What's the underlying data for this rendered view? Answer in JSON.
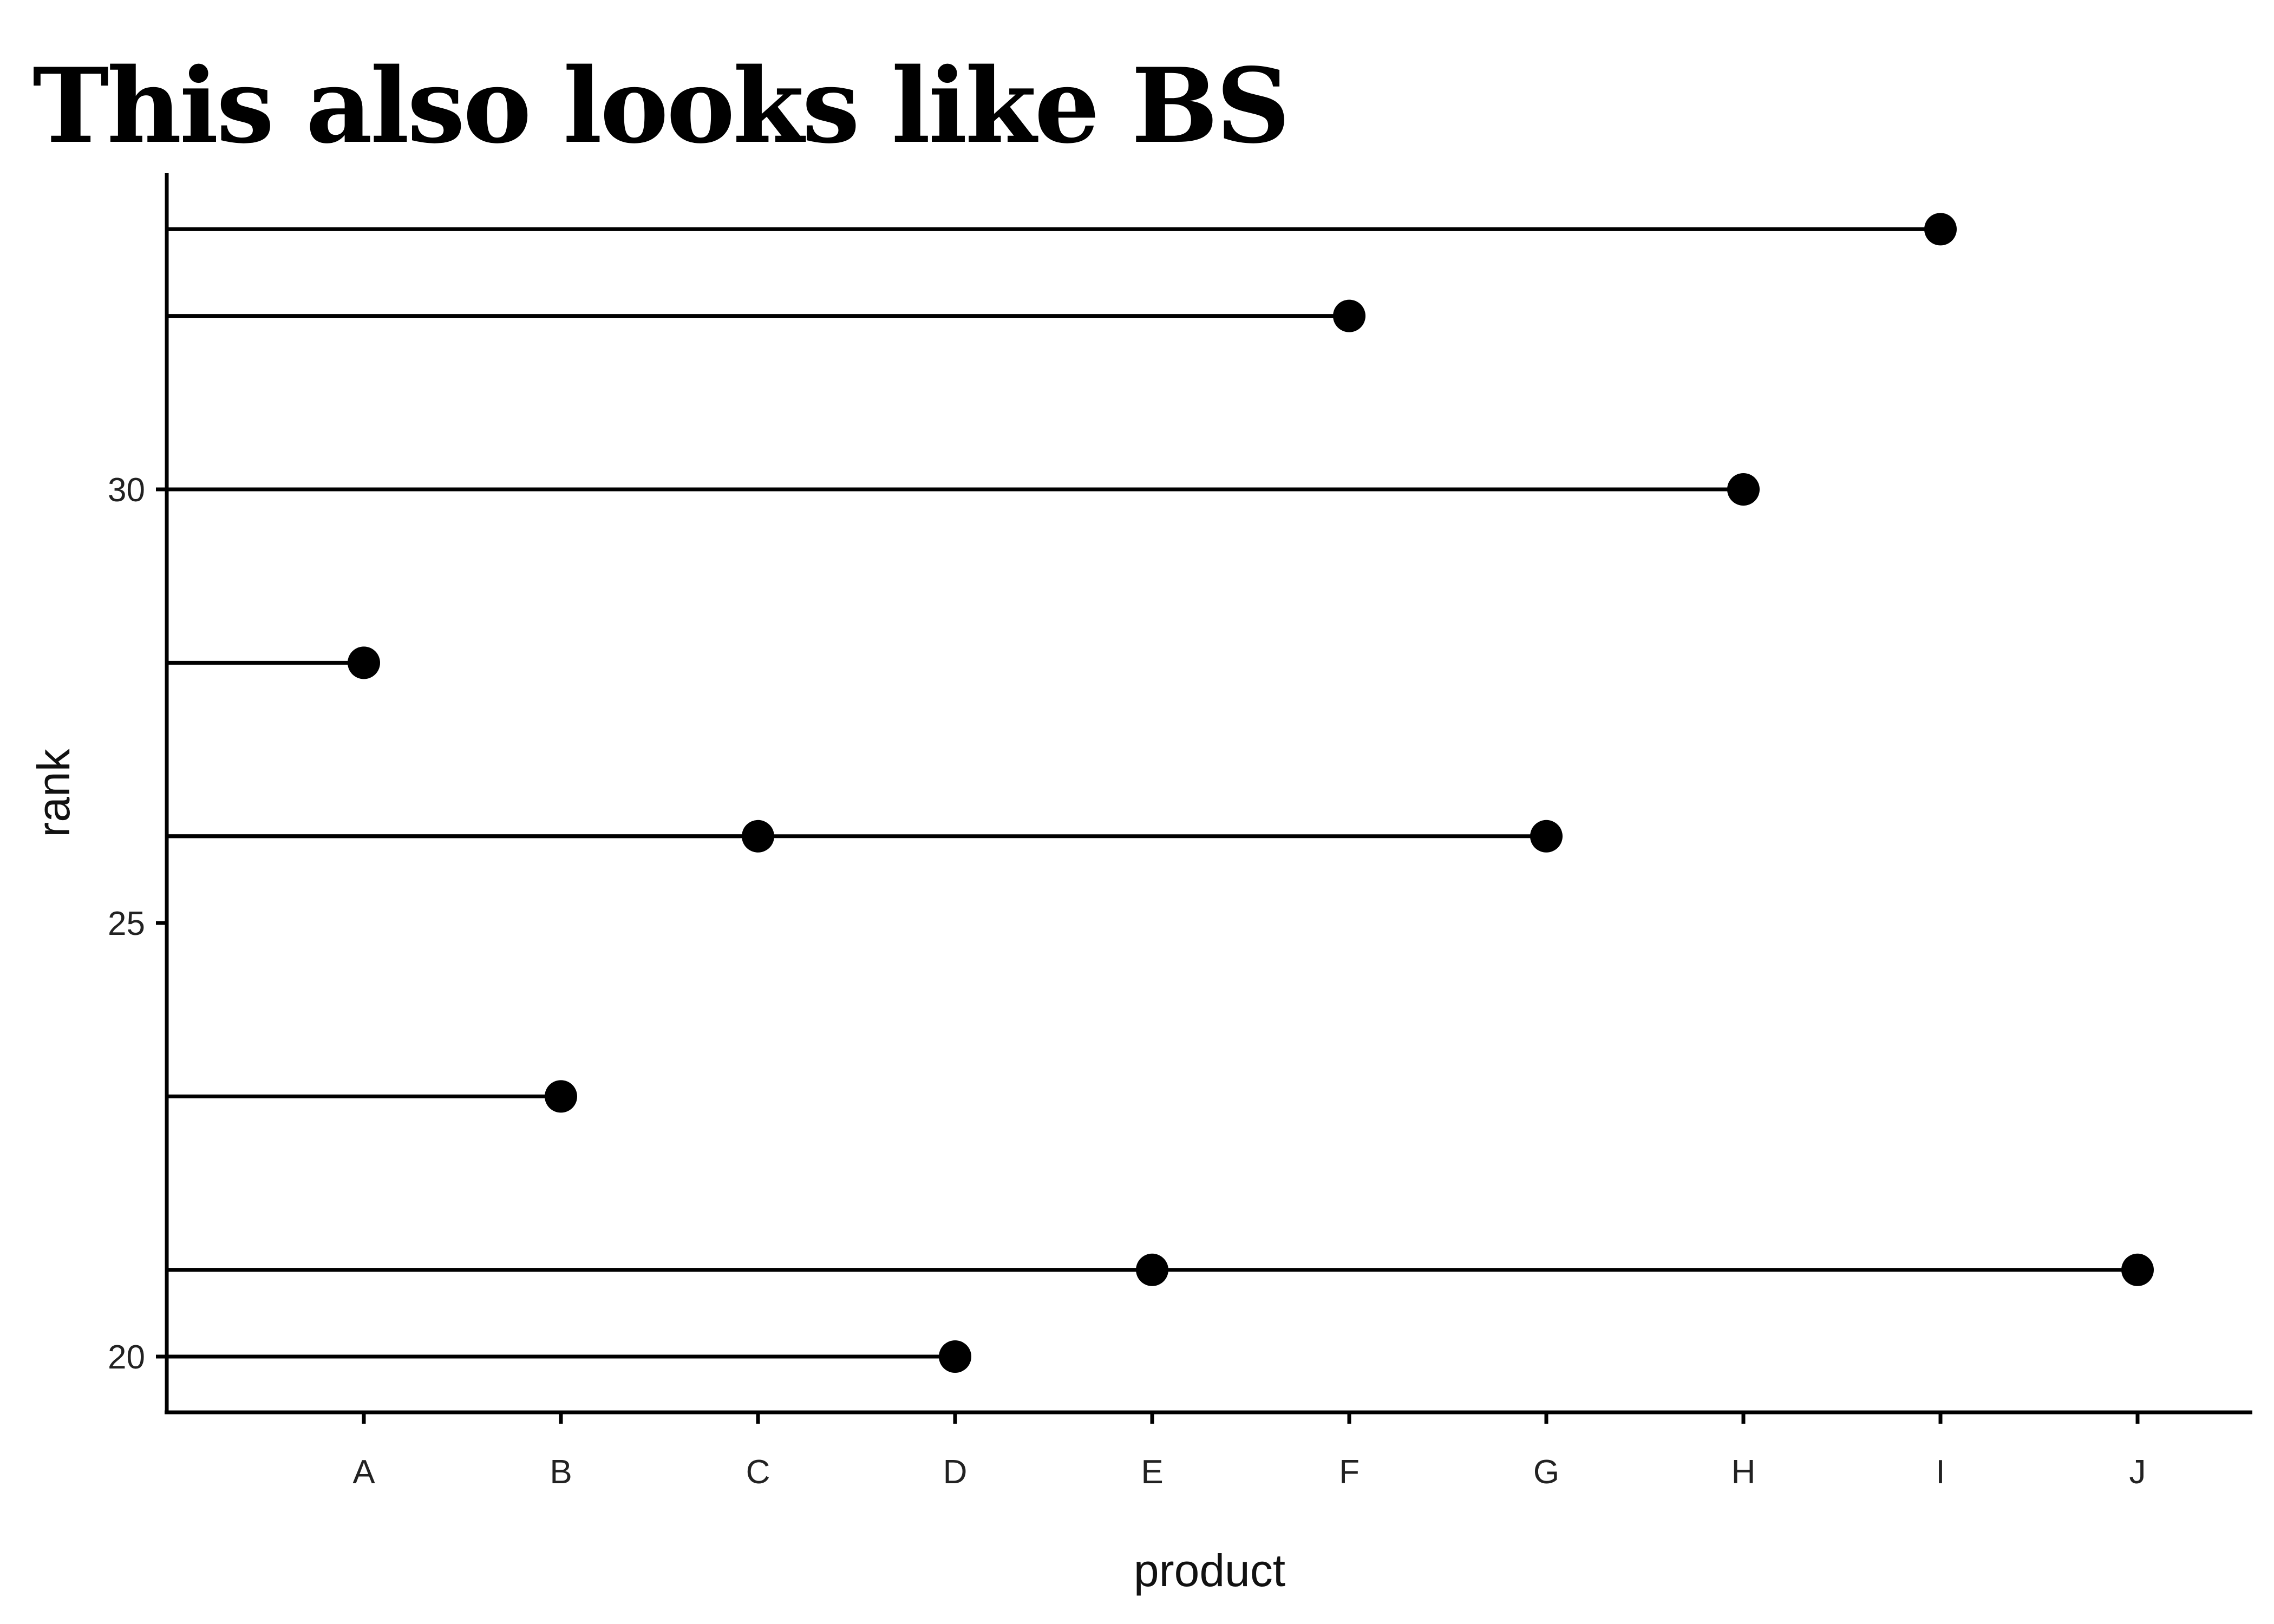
{
  "chart_data": {
    "type": "lollipop",
    "title": "This also looks like BS",
    "xlabel": "product",
    "ylabel": "rank",
    "categories": [
      "A",
      "B",
      "C",
      "D",
      "E",
      "F",
      "G",
      "H",
      "I",
      "J"
    ],
    "points": [
      {
        "product": "A",
        "rank": 28
      },
      {
        "product": "B",
        "rank": 23
      },
      {
        "product": "C",
        "rank": 26
      },
      {
        "product": "D",
        "rank": 20
      },
      {
        "product": "E",
        "rank": 21
      },
      {
        "product": "F",
        "rank": 32
      },
      {
        "product": "G",
        "rank": 26
      },
      {
        "product": "H",
        "rank": 30
      },
      {
        "product": "I",
        "rank": 33
      },
      {
        "product": "J",
        "rank": 21
      }
    ],
    "yticks": [
      20,
      25,
      30
    ],
    "ylim": [
      19.35,
      33.65
    ],
    "grid": false,
    "legend": "none"
  }
}
